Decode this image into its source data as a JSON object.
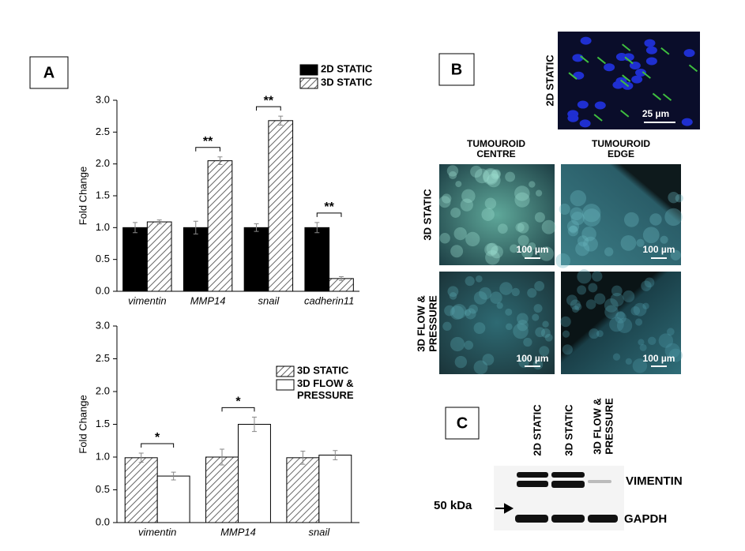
{
  "panel_labels": [
    "A",
    "B",
    "C"
  ],
  "chart_data": [
    {
      "type": "bar",
      "y_label": "Fold Change",
      "categories": [
        "vimentin",
        "MMP14",
        "snail",
        "cadherin11"
      ],
      "series": [
        {
          "name": "2D STATIC",
          "color": "#000000",
          "hatch": false,
          "values": [
            1.0,
            1.0,
            1.0,
            1.0
          ],
          "errors": [
            0.08,
            0.1,
            0.06,
            0.08
          ]
        },
        {
          "name": "3D STATIC",
          "color": "#d9d9d9",
          "hatch": true,
          "values": [
            1.09,
            2.05,
            2.68,
            0.2
          ],
          "errors": [
            0.03,
            0.06,
            0.07,
            0.03
          ]
        }
      ],
      "significance": [
        null,
        "**",
        "**",
        "**"
      ],
      "ylim": [
        0,
        3
      ],
      "yticks": [
        {
          "value": 0,
          "label": "0.0"
        },
        {
          "value": 0.5,
          "label": "0.5"
        },
        {
          "value": 1,
          "label": "1.0"
        },
        {
          "value": 1.5,
          "label": "1.5"
        },
        {
          "value": 2,
          "label": "2.0"
        },
        {
          "value": 2.5,
          "label": "2.5"
        },
        {
          "value": 3,
          "label": "3.0"
        }
      ]
    },
    {
      "type": "bar",
      "y_label": "Fold Change",
      "categories": [
        "vimentin",
        "MMP14",
        "snail"
      ],
      "series": [
        {
          "name": "3D STATIC",
          "color": "#d9d9d9",
          "hatch": true,
          "values": [
            0.99,
            1.0,
            0.99
          ],
          "errors": [
            0.07,
            0.12,
            0.1
          ]
        },
        {
          "name": "3D FLOW & PRESSURE",
          "color": "#ffffff",
          "hatch": false,
          "values": [
            0.71,
            1.5,
            1.03
          ],
          "errors": [
            0.06,
            0.11,
            0.07
          ]
        }
      ],
      "significance": [
        "*",
        "*",
        null
      ],
      "ylim": [
        0,
        3
      ],
      "yticks": [
        {
          "value": 0,
          "label": "0.0"
        },
        {
          "value": 0.5,
          "label": "0.5"
        },
        {
          "value": 1,
          "label": "1.0"
        },
        {
          "value": 1.5,
          "label": "1.5"
        },
        {
          "value": 2,
          "label": "2.0"
        },
        {
          "value": 2.5,
          "label": "2.5"
        },
        {
          "value": 3,
          "label": "3.0"
        }
      ]
    }
  ],
  "microscopy": {
    "top_label": "2D STATIC",
    "top_scale": "25 µm",
    "columns": [
      [
        "TUMOUROID",
        "CENTRE"
      ],
      [
        "TUMOUROID",
        "EDGE"
      ]
    ],
    "rows": [
      [
        "3D STATIC"
      ],
      [
        "3D FLOW &",
        "PRESSURE"
      ]
    ],
    "scale": "100 µm"
  },
  "blot": {
    "lanes": [
      [
        "2D STATIC"
      ],
      [
        "3D STATIC"
      ],
      [
        "3D FLOW &",
        "PRESSURE"
      ]
    ],
    "bands": [
      "VIMENTIN",
      "GAPDH"
    ],
    "marker": "50 kDa"
  }
}
